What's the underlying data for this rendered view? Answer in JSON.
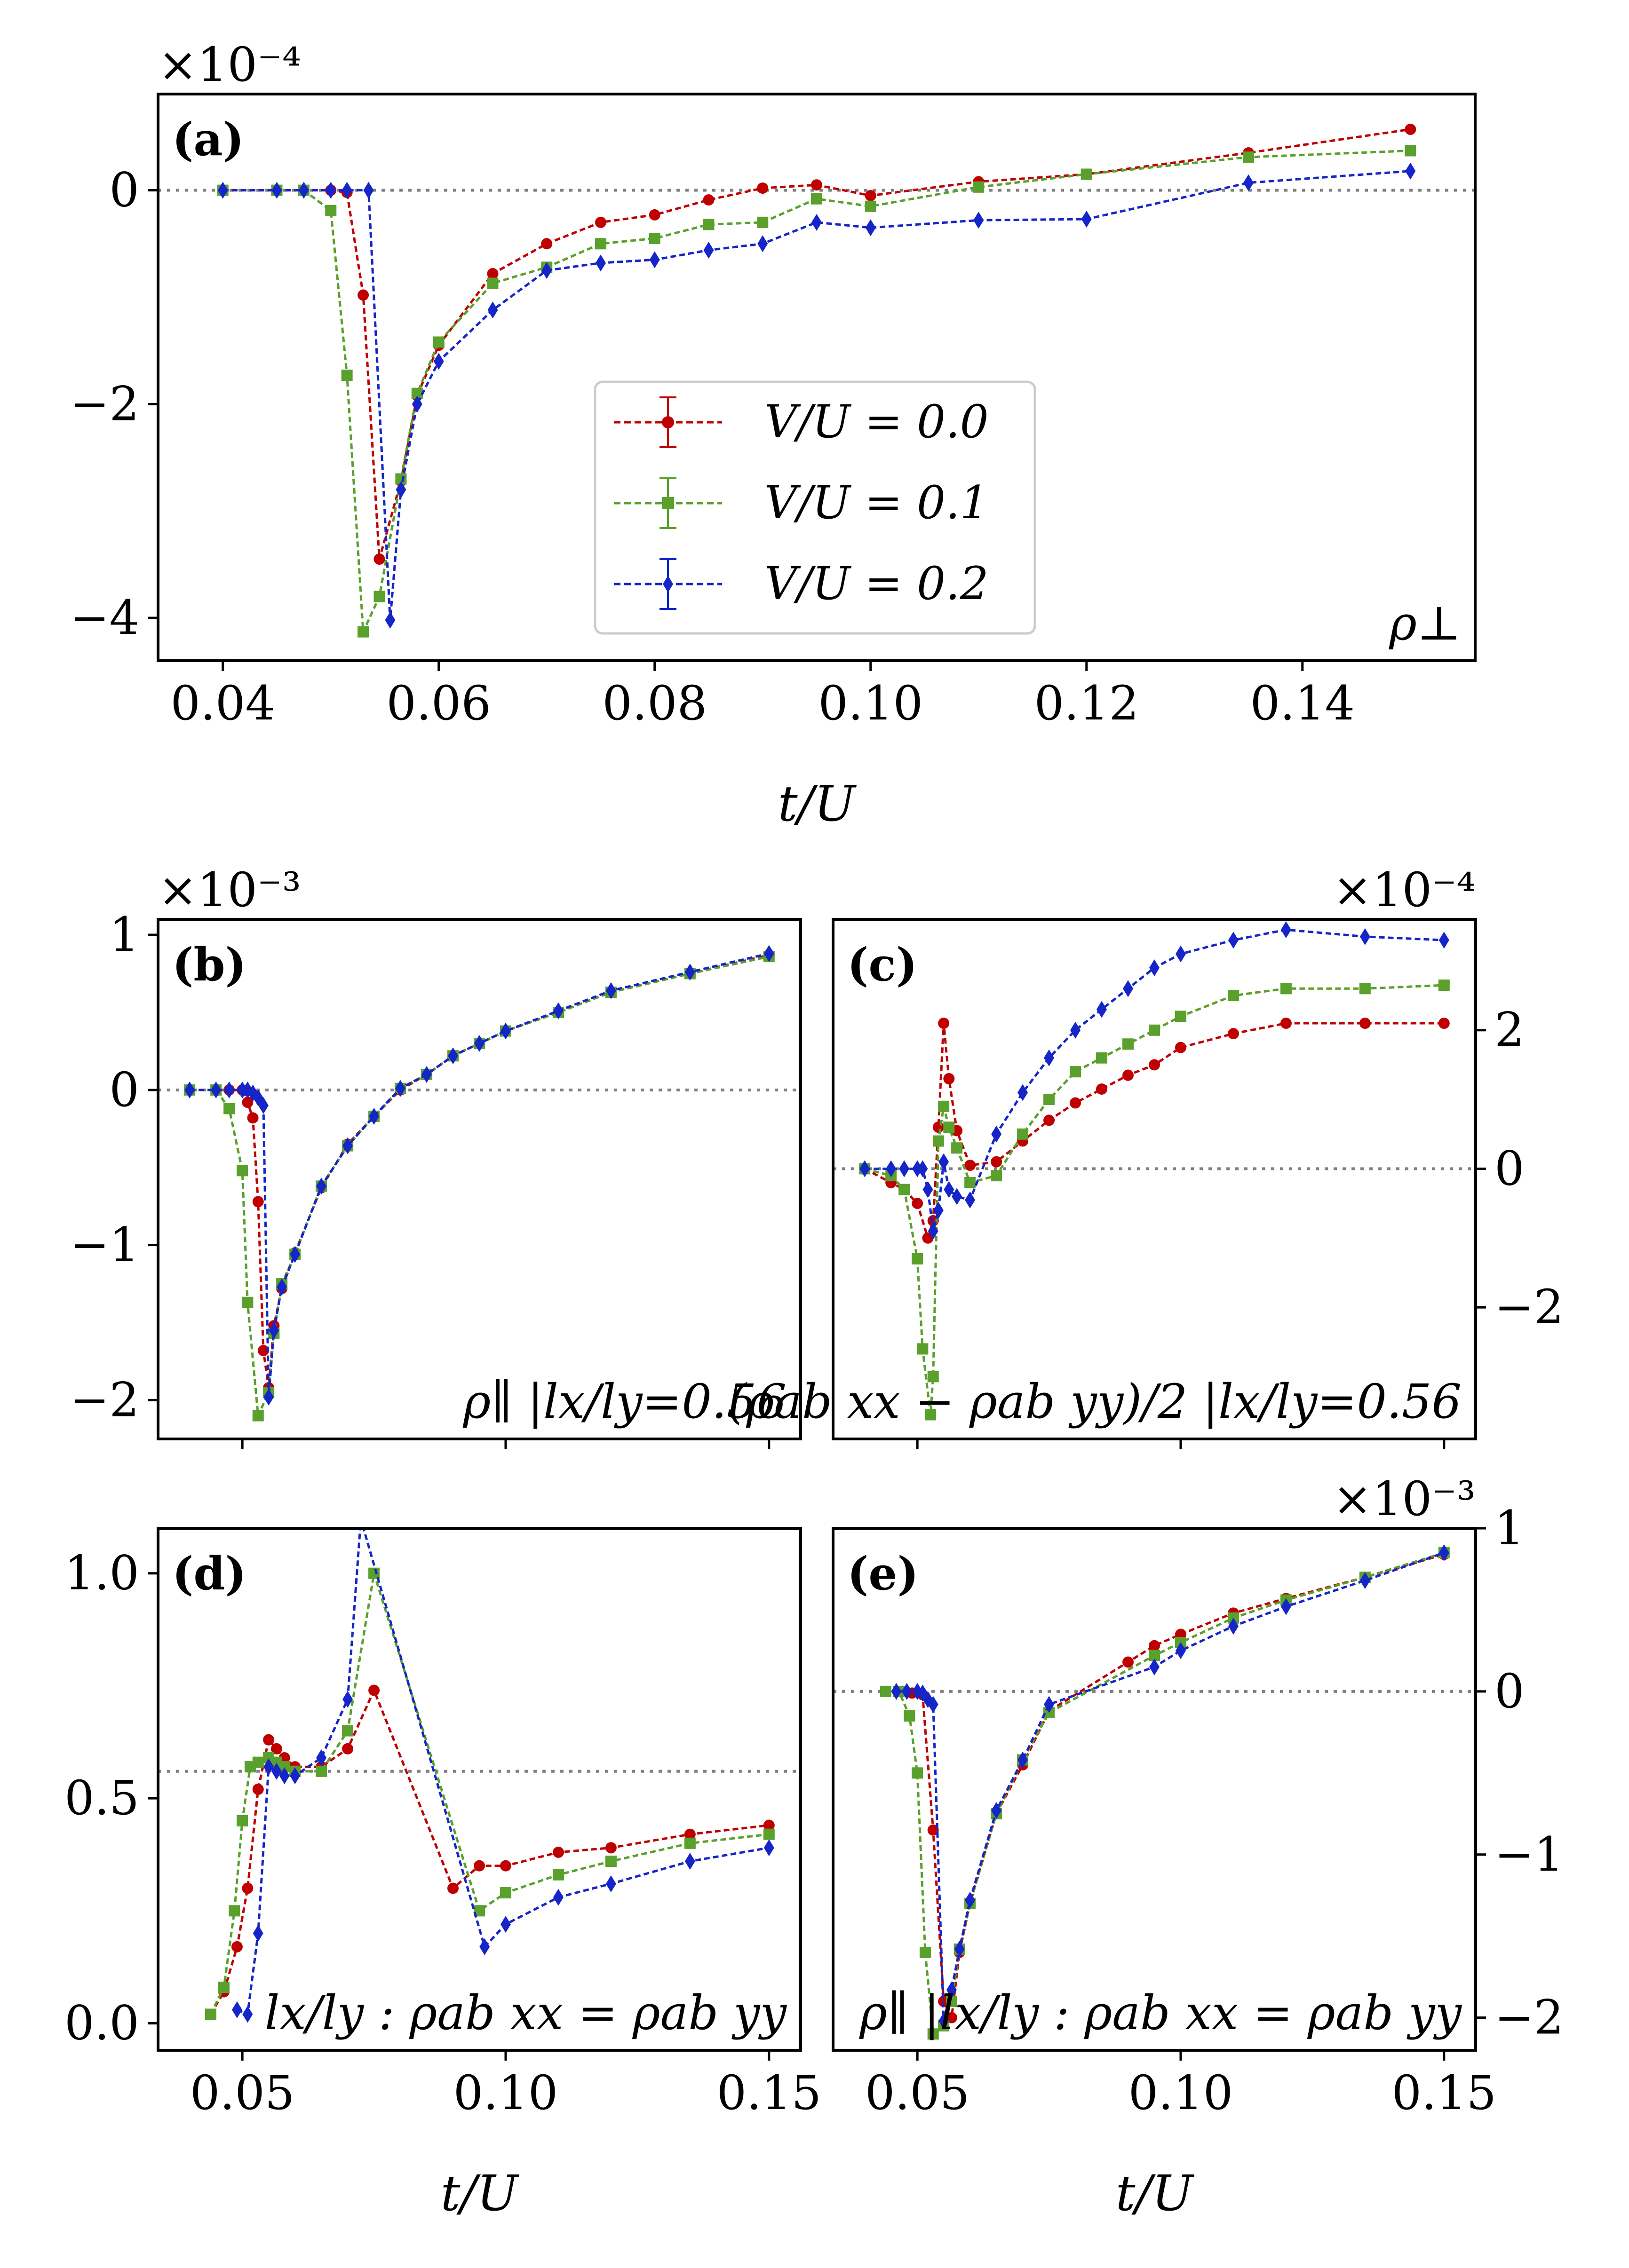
{
  "chart_data": [
    {
      "id": "a",
      "type": "line",
      "tag": "(a)",
      "xlabel": "t/U",
      "xlim": [
        0.034,
        0.156
      ],
      "ylim": [
        -4.4,
        0.9
      ],
      "xticks": [
        0.04,
        0.06,
        0.08,
        0.1,
        0.12,
        0.14
      ],
      "xtick_labels": [
        "0.04",
        "0.06",
        "0.08",
        "0.10",
        "0.12",
        "0.14"
      ],
      "yticks": [
        -4,
        -2,
        0
      ],
      "ytick_labels": [
        "−4",
        "−2",
        "0"
      ],
      "yaxis_side": "left",
      "scale_label": "×10⁻⁴",
      "scale_position": "left",
      "reference_y": 0,
      "annotation": "ρ⊥",
      "series": [
        {
          "name": "V/U = 0.0",
          "color": "#c00000",
          "marker": "circle",
          "x": [
            0.04,
            0.045,
            0.0475,
            0.05,
            0.0515,
            0.053,
            0.0545,
            0.0565,
            0.058,
            0.06,
            0.065,
            0.07,
            0.075,
            0.08,
            0.085,
            0.09,
            0.095,
            0.1,
            0.11,
            0.12,
            0.135,
            0.15
          ],
          "y": [
            0,
            0,
            0,
            0,
            -0.02,
            -0.98,
            -3.45,
            -2.72,
            -1.92,
            -1.45,
            -0.78,
            -0.5,
            -0.3,
            -0.23,
            -0.09,
            0.02,
            0.05,
            -0.05,
            0.08,
            0.15,
            0.35,
            0.57
          ]
        },
        {
          "name": "V/U = 0.1",
          "color": "#5aa02c",
          "marker": "square",
          "x": [
            0.04,
            0.045,
            0.0475,
            0.05,
            0.0515,
            0.053,
            0.0545,
            0.0565,
            0.058,
            0.06,
            0.065,
            0.07,
            0.075,
            0.08,
            0.085,
            0.09,
            0.095,
            0.1,
            0.11,
            0.12,
            0.135,
            0.15
          ],
          "y": [
            0,
            0,
            0,
            -0.19,
            -1.73,
            -4.13,
            -3.8,
            -2.7,
            -1.9,
            -1.42,
            -0.87,
            -0.72,
            -0.5,
            -0.45,
            -0.32,
            -0.3,
            -0.08,
            -0.15,
            0.03,
            0.15,
            0.31,
            0.37
          ]
        },
        {
          "name": "V/U = 0.2",
          "color": "#1525c8",
          "marker": "diamond",
          "x": [
            0.04,
            0.045,
            0.0475,
            0.05,
            0.0515,
            0.0535,
            0.0555,
            0.0565,
            0.058,
            0.06,
            0.065,
            0.07,
            0.075,
            0.08,
            0.085,
            0.09,
            0.095,
            0.1,
            0.11,
            0.12,
            0.135,
            0.15
          ],
          "y": [
            0,
            0,
            0,
            0,
            0,
            0,
            -4.02,
            -2.8,
            -2.0,
            -1.6,
            -1.12,
            -0.75,
            -0.68,
            -0.65,
            -0.56,
            -0.5,
            -0.3,
            -0.35,
            -0.28,
            -0.27,
            0.07,
            0.18
          ]
        }
      ]
    },
    {
      "id": "b",
      "type": "line",
      "tag": "(b)",
      "xlabel": "",
      "xlim": [
        0.034,
        0.156
      ],
      "ylim": [
        -2.25,
        1.1
      ],
      "xticks": [
        0.05,
        0.1,
        0.15
      ],
      "xtick_labels": [],
      "yticks": [
        -2,
        -1,
        0,
        1
      ],
      "ytick_labels": [
        "−2",
        "−1",
        "0",
        "1"
      ],
      "yaxis_side": "left",
      "scale_label": "×10⁻³",
      "scale_position": "left",
      "reference_y": 0,
      "annotation": "ρ∥ |lx/ly=0.56",
      "series": [
        {
          "name": "V/U = 0.0",
          "color": "#c00000",
          "marker": "circle",
          "x": [
            0.04,
            0.045,
            0.0475,
            0.05,
            0.051,
            0.052,
            0.053,
            0.054,
            0.055,
            0.056,
            0.0575,
            0.06,
            0.065,
            0.07,
            0.075,
            0.08,
            0.085,
            0.09,
            0.095,
            0.1,
            0.11,
            0.12,
            0.135,
            0.15
          ],
          "y": [
            0,
            0,
            0,
            0,
            -0.08,
            -0.18,
            -0.72,
            -1.68,
            -1.92,
            -1.52,
            -1.28,
            -1.05,
            -0.63,
            -0.35,
            -0.17,
            0.0,
            0.1,
            0.22,
            0.3,
            0.38,
            0.5,
            0.63,
            0.75,
            0.87
          ]
        },
        {
          "name": "V/U = 0.1",
          "color": "#5aa02c",
          "marker": "square",
          "x": [
            0.04,
            0.045,
            0.0475,
            0.05,
            0.051,
            0.053,
            0.055,
            0.056,
            0.0575,
            0.06,
            0.065,
            0.07,
            0.075,
            0.08,
            0.085,
            0.09,
            0.095,
            0.1,
            0.11,
            0.12,
            0.135,
            0.15
          ],
          "y": [
            0,
            0,
            -0.12,
            -0.52,
            -1.37,
            -2.1,
            -1.95,
            -1.57,
            -1.25,
            -1.06,
            -0.62,
            -0.36,
            -0.17,
            0.01,
            0.1,
            0.22,
            0.3,
            0.38,
            0.5,
            0.63,
            0.75,
            0.86
          ]
        },
        {
          "name": "V/U = 0.2",
          "color": "#1525c8",
          "marker": "diamond",
          "x": [
            0.04,
            0.045,
            0.0475,
            0.05,
            0.051,
            0.052,
            0.053,
            0.054,
            0.055,
            0.056,
            0.0575,
            0.06,
            0.065,
            0.07,
            0.075,
            0.08,
            0.085,
            0.09,
            0.095,
            0.1,
            0.11,
            0.12,
            0.135,
            0.15
          ],
          "y": [
            0,
            0,
            0,
            0,
            0,
            -0.02,
            -0.05,
            -0.1,
            -1.98,
            -1.55,
            -1.27,
            -1.06,
            -0.62,
            -0.36,
            -0.17,
            0.01,
            0.1,
            0.22,
            0.3,
            0.38,
            0.51,
            0.64,
            0.76,
            0.88
          ]
        }
      ]
    },
    {
      "id": "c",
      "type": "line",
      "tag": "(c)",
      "xlabel": "",
      "xlim": [
        0.034,
        0.156
      ],
      "ylim": [
        -3.9,
        3.6
      ],
      "xticks": [
        0.05,
        0.1,
        0.15
      ],
      "xtick_labels": [],
      "yticks": [
        -2,
        0,
        2
      ],
      "ytick_labels": [
        "−2",
        "0",
        "2"
      ],
      "yaxis_side": "right",
      "scale_label": "×10⁻⁴",
      "scale_position": "right",
      "reference_y": 0,
      "annotation": "(ρab xx − ρab yy)/2 |lx/ly=0.56",
      "series": [
        {
          "name": "V/U = 0.0",
          "color": "#c00000",
          "marker": "circle",
          "x": [
            0.04,
            0.045,
            0.0475,
            0.05,
            0.052,
            0.053,
            0.054,
            0.055,
            0.056,
            0.0575,
            0.06,
            0.065,
            0.07,
            0.075,
            0.08,
            0.085,
            0.09,
            0.095,
            0.1,
            0.11,
            0.12,
            0.135,
            0.15
          ],
          "y": [
            0,
            -0.2,
            -0.3,
            -0.5,
            -1.0,
            -0.75,
            0.6,
            2.1,
            1.3,
            0.55,
            0.05,
            0.1,
            0.4,
            0.7,
            0.95,
            1.15,
            1.35,
            1.5,
            1.75,
            1.95,
            2.1,
            2.1,
            2.1
          ]
        },
        {
          "name": "V/U = 0.1",
          "color": "#5aa02c",
          "marker": "square",
          "x": [
            0.04,
            0.045,
            0.0475,
            0.05,
            0.051,
            0.0525,
            0.053,
            0.054,
            0.055,
            0.056,
            0.0575,
            0.06,
            0.065,
            0.07,
            0.075,
            0.08,
            0.085,
            0.09,
            0.095,
            0.1,
            0.11,
            0.12,
            0.135,
            0.15
          ],
          "y": [
            0,
            -0.1,
            -0.3,
            -1.3,
            -2.6,
            -3.55,
            -3.0,
            0.4,
            0.9,
            0.6,
            0.3,
            -0.2,
            -0.1,
            0.5,
            1.0,
            1.4,
            1.6,
            1.8,
            2.0,
            2.2,
            2.5,
            2.6,
            2.6,
            2.65
          ]
        },
        {
          "name": "V/U = 0.2",
          "color": "#1525c8",
          "marker": "diamond",
          "x": [
            0.04,
            0.045,
            0.0475,
            0.05,
            0.051,
            0.052,
            0.053,
            0.054,
            0.055,
            0.056,
            0.0575,
            0.06,
            0.065,
            0.07,
            0.075,
            0.08,
            0.085,
            0.09,
            0.095,
            0.1,
            0.11,
            0.12,
            0.135,
            0.15
          ],
          "y": [
            0,
            0,
            0,
            0,
            0,
            -0.3,
            -0.9,
            -0.6,
            0.1,
            -0.3,
            -0.4,
            -0.45,
            0.5,
            1.1,
            1.6,
            2.0,
            2.3,
            2.6,
            2.9,
            3.1,
            3.3,
            3.45,
            3.35,
            3.3
          ]
        }
      ]
    },
    {
      "id": "d",
      "type": "line",
      "tag": "(d)",
      "xlabel": "t/U",
      "xlim": [
        0.034,
        0.156
      ],
      "ylim": [
        -0.06,
        1.1
      ],
      "xticks": [
        0.05,
        0.1,
        0.15
      ],
      "xtick_labels": [
        "0.05",
        "0.10",
        "0.15"
      ],
      "yticks": [
        0.0,
        0.5,
        1.0
      ],
      "ytick_labels": [
        "0.0",
        "0.5",
        "1.0"
      ],
      "yaxis_side": "left",
      "scale_label": "",
      "scale_position": "none",
      "reference_y": 0.56,
      "annotation": "lx/ly : ρab xx = ρab yy",
      "series": [
        {
          "name": "V/U = 0.0",
          "color": "#c00000",
          "marker": "circle",
          "x": [
            0.044,
            0.0465,
            0.049,
            0.051,
            0.053,
            0.055,
            0.0565,
            0.058,
            0.06,
            0.065,
            0.07,
            0.075,
            0.09,
            0.095,
            0.1,
            0.11,
            0.12,
            0.135,
            0.15
          ],
          "y": [
            0.02,
            0.07,
            0.17,
            0.3,
            0.52,
            0.63,
            0.61,
            0.59,
            0.57,
            0.57,
            0.61,
            0.74,
            0.3,
            0.35,
            0.35,
            0.38,
            0.39,
            0.42,
            0.44
          ]
        },
        {
          "name": "V/U = 0.1",
          "color": "#5aa02c",
          "marker": "square",
          "x": [
            0.044,
            0.0465,
            0.0485,
            0.05,
            0.0515,
            0.053,
            0.055,
            0.0565,
            0.058,
            0.06,
            0.065,
            0.07,
            0.075,
            0.095,
            0.1,
            0.11,
            0.12,
            0.135,
            0.15
          ],
          "y": [
            0.02,
            0.08,
            0.25,
            0.45,
            0.57,
            0.58,
            0.59,
            0.58,
            0.57,
            0.56,
            0.56,
            0.65,
            1.0,
            0.25,
            0.29,
            0.33,
            0.36,
            0.4,
            0.42
          ]
        },
        {
          "name": "V/U = 0.2",
          "color": "#1525c8",
          "marker": "diamond",
          "x": [
            0.049,
            0.051,
            0.053,
            0.055,
            0.0565,
            0.058,
            0.06,
            0.065,
            0.07,
            0.0725,
            0.096,
            0.1,
            0.11,
            0.12,
            0.135,
            0.15
          ],
          "y": [
            0.03,
            0.02,
            0.2,
            0.57,
            0.56,
            0.55,
            0.55,
            0.59,
            0.72,
            1.12,
            0.17,
            0.22,
            0.28,
            0.31,
            0.36,
            0.39
          ]
        }
      ]
    },
    {
      "id": "e",
      "type": "line",
      "tag": "(e)",
      "xlabel": "t/U",
      "xlim": [
        0.034,
        0.156
      ],
      "ylim": [
        -2.2,
        1.0
      ],
      "xticks": [
        0.05,
        0.1,
        0.15
      ],
      "xtick_labels": [
        "0.05",
        "0.10",
        "0.15"
      ],
      "yticks": [
        -2,
        -1,
        0,
        1
      ],
      "ytick_labels": [
        "−2",
        "−1",
        "0",
        "1"
      ],
      "yaxis_side": "right",
      "scale_label": "×10⁻³",
      "scale_position": "right",
      "reference_y": 0,
      "annotation": "ρ∥ |lx/ly : ρab xx = ρab yy",
      "series": [
        {
          "name": "V/U = 0.0",
          "color": "#c00000",
          "marker": "circle",
          "x": [
            0.044,
            0.0465,
            0.049,
            0.051,
            0.053,
            0.055,
            0.0565,
            0.058,
            0.06,
            0.065,
            0.07,
            0.075,
            0.09,
            0.095,
            0.1,
            0.11,
            0.12,
            0.135,
            0.15
          ],
          "y": [
            0,
            0,
            -0.01,
            -0.02,
            -0.85,
            -1.9,
            -2.0,
            -1.6,
            -1.3,
            -0.75,
            -0.45,
            -0.12,
            0.18,
            0.28,
            0.35,
            0.48,
            0.57,
            0.7,
            0.84
          ]
        },
        {
          "name": "V/U = 0.1",
          "color": "#5aa02c",
          "marker": "square",
          "x": [
            0.044,
            0.0465,
            0.0485,
            0.05,
            0.0515,
            0.053,
            0.055,
            0.0565,
            0.058,
            0.06,
            0.065,
            0.07,
            0.075,
            0.095,
            0.1,
            0.11,
            0.12,
            0.135,
            0.15
          ],
          "y": [
            0,
            0,
            -0.15,
            -0.5,
            -1.6,
            -2.1,
            -2.05,
            -1.9,
            -1.58,
            -1.3,
            -0.75,
            -0.42,
            -0.13,
            0.22,
            0.3,
            0.45,
            0.56,
            0.7,
            0.85
          ]
        },
        {
          "name": "V/U = 0.2",
          "color": "#1525c8",
          "marker": "diamond",
          "x": [
            0.046,
            0.048,
            0.05,
            0.051,
            0.052,
            0.053,
            0.055,
            0.0565,
            0.058,
            0.06,
            0.065,
            0.07,
            0.075,
            0.095,
            0.1,
            0.11,
            0.12,
            0.135,
            0.15
          ],
          "y": [
            0,
            0,
            0,
            -0.01,
            -0.05,
            -0.08,
            -2.02,
            -1.83,
            -1.58,
            -1.28,
            -0.73,
            -0.42,
            -0.08,
            0.15,
            0.25,
            0.4,
            0.52,
            0.68,
            0.85
          ]
        }
      ]
    }
  ],
  "legend": {
    "placement": "panel-a-center",
    "entries": [
      "V/U = 0.0",
      "V/U = 0.1",
      "V/U = 0.2"
    ]
  },
  "text": {
    "xlabel_a": "t/U",
    "xlabel_d": "t/U",
    "xlabel_e": "t/U"
  }
}
